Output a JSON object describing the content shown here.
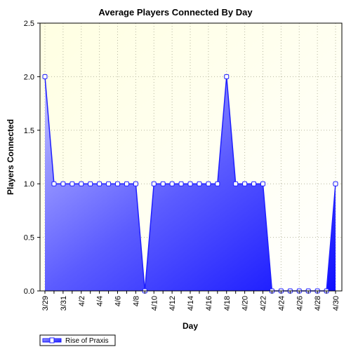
{
  "chart_data": {
    "type": "area",
    "title": "Average Players Connected By Day",
    "xlabel": "Day",
    "ylabel": "Players Connected",
    "ylim": [
      0,
      2.5
    ],
    "yticks": [
      "0.0",
      "0.5",
      "1.0",
      "1.5",
      "2.0",
      "2.5"
    ],
    "x": [
      "3/29",
      "3/30",
      "3/31",
      "4/1",
      "4/2",
      "4/3",
      "4/4",
      "4/5",
      "4/6",
      "4/7",
      "4/8",
      "4/9",
      "4/10",
      "4/11",
      "4/12",
      "4/13",
      "4/14",
      "4/15",
      "4/16",
      "4/17",
      "4/18",
      "4/19",
      "4/20",
      "4/21",
      "4/22",
      "4/23",
      "4/24",
      "4/25",
      "4/26",
      "4/27",
      "4/28",
      "4/29",
      "4/30"
    ],
    "xtick_labels": [
      "3/29",
      "3/31",
      "4/2",
      "4/4",
      "4/6",
      "4/8",
      "4/10",
      "4/12",
      "4/14",
      "4/16",
      "4/18",
      "4/20",
      "4/22",
      "4/24",
      "4/26",
      "4/28",
      "4/30"
    ],
    "series": [
      {
        "name": "Rise of Praxis",
        "values": [
          2,
          1,
          1,
          1,
          1,
          1,
          1,
          1,
          1,
          1,
          1,
          0,
          1,
          1,
          1,
          1,
          1,
          1,
          1,
          1,
          2,
          1,
          1,
          1,
          1,
          0,
          0,
          0,
          0,
          0,
          0,
          0,
          1
        ]
      }
    ],
    "grid": true,
    "legend": "bottom-left",
    "colors": {
      "line": "#1f1fff",
      "fill_light": "#c8c8ff",
      "fill_dark": "#1414ff",
      "plot_bg_light": "#ffffe6",
      "plot_bg_mid": "#fffff8",
      "marker_fill": "#ffffff"
    }
  }
}
